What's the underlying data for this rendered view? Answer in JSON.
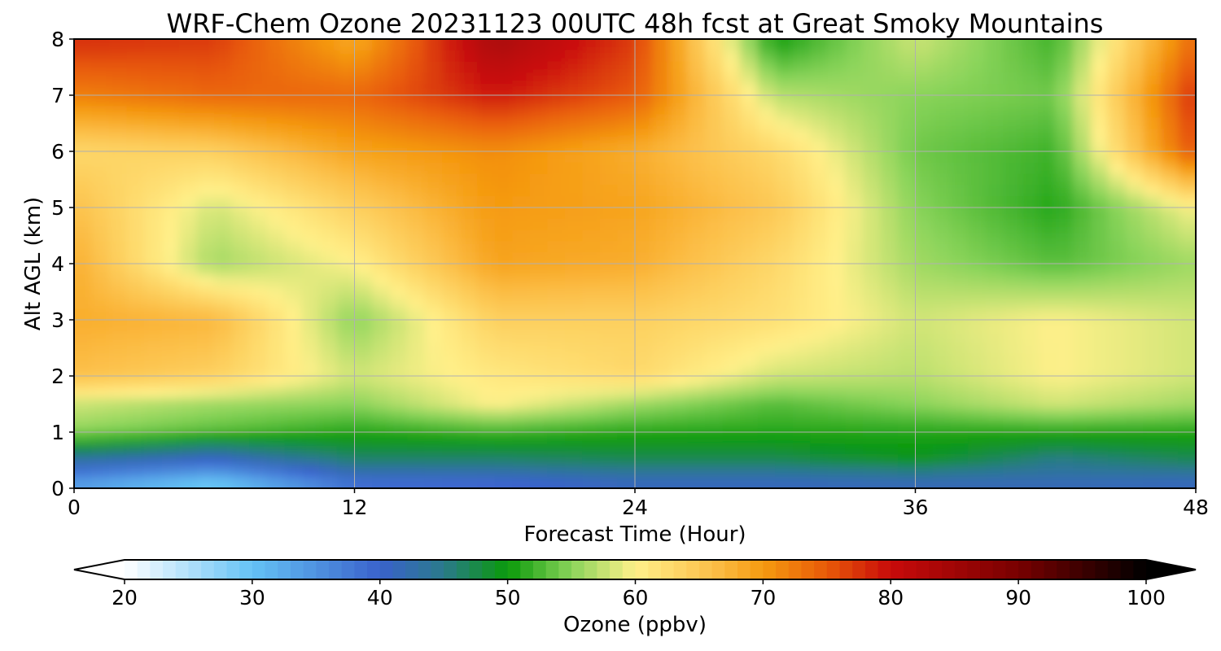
{
  "chart_data": {
    "type": "heatmap",
    "title": "WRF-Chem Ozone  20231123 00UTC 48h fcst at Great Smoky Mountains",
    "xlabel": "Forecast Time (Hour)",
    "ylabel": "Alt AGL (km)",
    "xlim": [
      0,
      48
    ],
    "ylim": [
      0,
      8
    ],
    "xticks": [
      0,
      12,
      24,
      36,
      48
    ],
    "yticks": [
      0,
      1,
      2,
      3,
      4,
      5,
      6,
      7,
      8
    ],
    "grid": true,
    "x": [
      0,
      6,
      12,
      18,
      24,
      30,
      36,
      42,
      48
    ],
    "y": [
      0,
      0.5,
      1,
      1.5,
      2,
      3,
      4,
      5,
      6,
      7,
      8
    ],
    "z": [
      [
        32,
        27,
        37,
        38,
        40,
        40,
        40,
        41,
        40
      ],
      [
        43,
        40,
        46,
        46,
        47,
        47,
        49,
        45,
        47
      ],
      [
        55,
        53,
        51,
        52,
        51,
        51,
        51,
        51,
        51
      ],
      [
        58,
        56,
        55,
        60,
        56,
        53,
        55,
        58,
        56
      ],
      [
        66,
        64,
        58,
        61,
        63,
        58,
        57,
        60,
        58
      ],
      [
        68,
        67,
        55,
        64,
        64,
        62,
        58,
        60,
        58
      ],
      [
        68,
        56,
        60,
        69,
        68,
        63,
        56,
        53,
        56
      ],
      [
        66,
        58,
        64,
        70,
        69,
        65,
        55,
        51,
        60
      ],
      [
        63,
        64,
        69,
        71,
        68,
        63,
        54,
        52,
        76
      ],
      [
        72,
        74,
        74,
        79,
        75,
        57,
        55,
        54,
        78
      ],
      [
        78,
        77,
        68,
        84,
        77,
        50,
        58,
        52,
        74
      ]
    ],
    "colorbar": {
      "label": "Ozone  (ppbv)",
      "min": 20,
      "max": 100,
      "ticks": [
        20,
        30,
        40,
        50,
        60,
        70,
        80,
        90,
        100
      ],
      "extend": "both",
      "stops": [
        {
          "v": 20,
          "c": "#ffffff"
        },
        {
          "v": 30,
          "c": "#64c2f5"
        },
        {
          "v": 40,
          "c": "#3a62cc"
        },
        {
          "v": 45,
          "c": "#2a7a8a"
        },
        {
          "v": 50,
          "c": "#0a9a0a"
        },
        {
          "v": 55,
          "c": "#8ad45a"
        },
        {
          "v": 60,
          "c": "#fff08a"
        },
        {
          "v": 66,
          "c": "#fcc04a"
        },
        {
          "v": 70,
          "c": "#f59a10"
        },
        {
          "v": 75,
          "c": "#e85a08"
        },
        {
          "v": 80,
          "c": "#c80a0a"
        },
        {
          "v": 90,
          "c": "#780000"
        },
        {
          "v": 100,
          "c": "#000000"
        }
      ]
    }
  }
}
